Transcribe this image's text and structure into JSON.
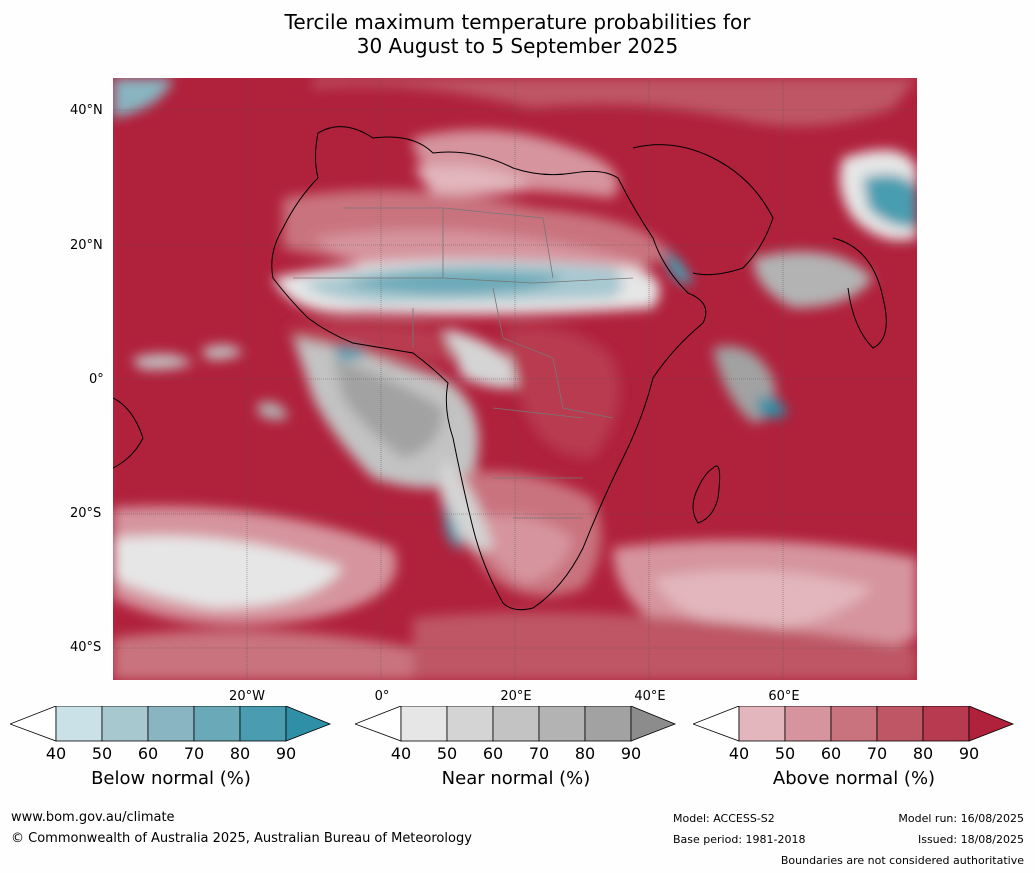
{
  "title": {
    "line1": "Tercile maximum temperature probabilities for",
    "line2": "30 August to 5 September 2025"
  },
  "map": {
    "lat_labels": [
      "40°N",
      "20°N",
      "0°",
      "20°S",
      "40°S"
    ],
    "lon_labels": [
      "20°W",
      "0°",
      "20°E",
      "40°E",
      "60°E"
    ]
  },
  "colorbars": [
    {
      "title": "Below normal (%)",
      "ticks": [
        "40",
        "50",
        "60",
        "70",
        "80",
        "90"
      ],
      "colors": [
        "#c9e1e7",
        "#a8c8d0",
        "#88b5c1",
        "#6aa9b7",
        "#4a9db0",
        "#2e8fa6"
      ]
    },
    {
      "title": "Near normal (%)",
      "ticks": [
        "40",
        "50",
        "60",
        "70",
        "80",
        "90"
      ],
      "colors": [
        "#e6e6e6",
        "#d4d4d4",
        "#c3c3c3",
        "#b3b3b3",
        "#a2a2a2",
        "#8c8c8c"
      ]
    },
    {
      "title": "Above normal (%)",
      "ticks": [
        "40",
        "50",
        "60",
        "70",
        "80",
        "90"
      ],
      "colors": [
        "#e2b6bc",
        "#d6949e",
        "#c9737f",
        "#be5666",
        "#b83a50",
        "#b0213c"
      ]
    }
  ],
  "footer": {
    "website": "www.bom.gov.au/climate",
    "copyright": "© Commonwealth of Australia 2025, Australian Bureau of Meteorology",
    "model": "Model: ACCESS-S2",
    "base_period": "Base period: 1981-2018",
    "model_run": "Model run: 16/08/2025",
    "issued": "Issued: 18/08/2025",
    "disclaimer": "Boundaries are not considered authoritative"
  }
}
